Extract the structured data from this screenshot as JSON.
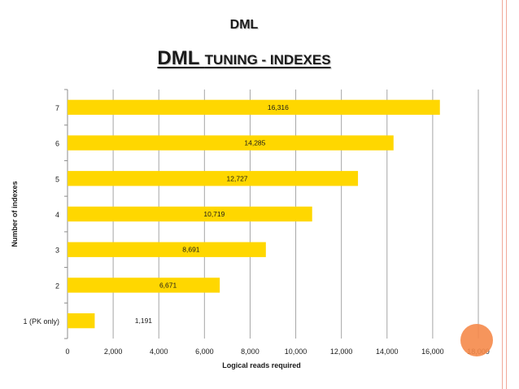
{
  "slide": {
    "heading": "DML",
    "title_main": "DML",
    "title_rest": "TUNING - INDEXES"
  },
  "chart_data": {
    "type": "bar",
    "orientation": "horizontal",
    "categories": [
      "1 (PK only)",
      "2",
      "3",
      "4",
      "5",
      "6",
      "7"
    ],
    "values": [
      1191,
      6671,
      8691,
      10719,
      12727,
      14285,
      16316
    ],
    "data_labels": [
      "1,191",
      "6,671",
      "8,691",
      "10,719",
      "12,727",
      "14,285",
      "16,316"
    ],
    "xlabel": "Logical reads required",
    "ylabel": "Number of indexes",
    "xlim": [
      0,
      18000
    ],
    "x_ticks": [
      0,
      2000,
      4000,
      6000,
      8000,
      10000,
      12000,
      14000,
      16000,
      18000
    ],
    "x_tick_labels": [
      "0",
      "2,000",
      "4,000",
      "6,000",
      "8,000",
      "10,000",
      "12,000",
      "14,000",
      "16,000",
      "18,000"
    ],
    "grid": true,
    "legend": "none",
    "bar_color": "#ffd700",
    "grid_color": "#a6a6a6",
    "accent_color": "#f58a4a"
  }
}
